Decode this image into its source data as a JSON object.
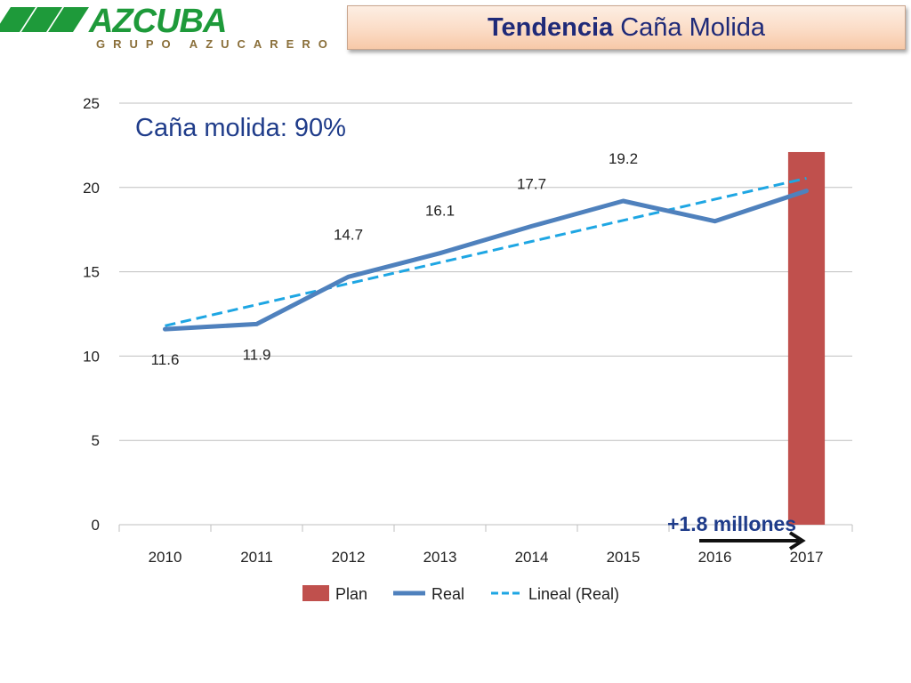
{
  "header": {
    "logo_main": "AZCUBA",
    "logo_sub": "GRUPO AZUCARERO",
    "title_bold": "Tendencia",
    "title_rest": "Caña Molida"
  },
  "colors": {
    "plan": "#c0504d",
    "real": "#4f81bd",
    "trend": "#1ea6e3",
    "logo_green": "#1e9a3a",
    "title_text": "#1f2a78"
  },
  "chart_data": {
    "type": "bar",
    "categories": [
      "2010",
      "2011",
      "2012",
      "2013",
      "2014",
      "2015",
      "2016",
      "2017"
    ],
    "ylim": [
      0,
      25
    ],
    "yticks": [
      0,
      5,
      10,
      15,
      20,
      25
    ],
    "grid": true,
    "legend_position": "bottom",
    "series": [
      {
        "name": "Plan",
        "type": "bar",
        "values": [
          null,
          null,
          null,
          null,
          null,
          null,
          null,
          22.1
        ]
      },
      {
        "name": "Real",
        "type": "line",
        "values": [
          11.6,
          11.9,
          14.7,
          16.1,
          17.7,
          19.2,
          18.0,
          19.8
        ]
      },
      {
        "name": "Lineal (Real)",
        "type": "line-dashed",
        "values": [
          11.8,
          13.05,
          14.3,
          15.55,
          16.8,
          18.05,
          19.3,
          20.55
        ]
      }
    ],
    "data_labels": [
      {
        "index": 0,
        "text": "11.6",
        "position": "below"
      },
      {
        "index": 1,
        "text": "11.9",
        "position": "below"
      },
      {
        "index": 2,
        "text": "14.7",
        "position": "above"
      },
      {
        "index": 3,
        "text": "16.1",
        "position": "above"
      },
      {
        "index": 4,
        "text": "17.7",
        "position": "above"
      },
      {
        "index": 5,
        "text": "19.2",
        "position": "above"
      }
    ],
    "annotations": {
      "main": "Caña molida: 90%",
      "bump": "+1.8 millones"
    }
  }
}
